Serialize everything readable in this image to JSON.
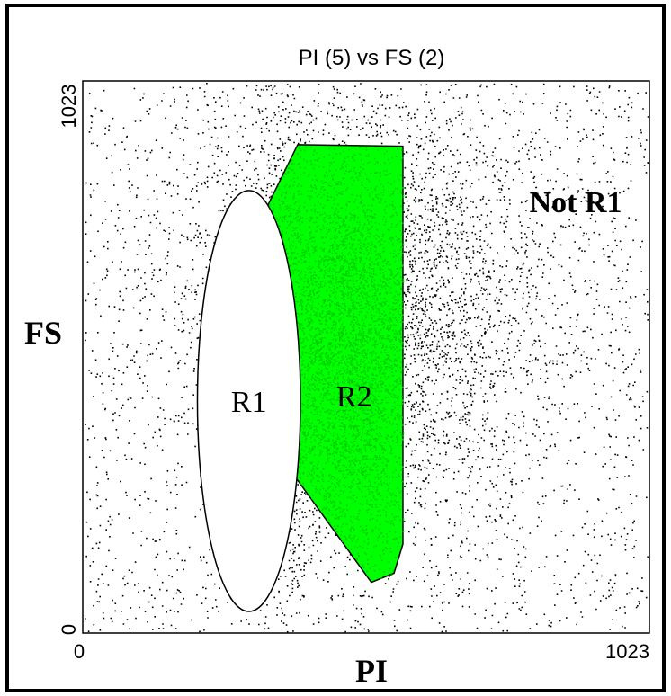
{
  "chart_data": {
    "type": "scatter",
    "title": "PI (5) vs FS (2)",
    "xlabel": "PI",
    "ylabel": "FS",
    "xlim": [
      0,
      1023
    ],
    "ylim": [
      0,
      1023
    ],
    "x_ticks": [
      "0",
      "1023"
    ],
    "y_ticks": [
      "0",
      "1023"
    ],
    "grid": false,
    "legend": "none",
    "colors": {
      "dots": "#000000",
      "r2_fill": "#00ff00",
      "r2_dots": "#00cc00",
      "background": "#ffffff"
    },
    "regions": [
      {
        "label": "R1",
        "shape": "ellipse",
        "center": [
          300,
          430
        ],
        "radii": [
          93,
          390
        ]
      },
      {
        "label": "R2",
        "shape": "polygon",
        "points": [
          [
            388,
            905
          ],
          [
            578,
            902
          ],
          [
            578,
            165
          ],
          [
            562,
            111
          ],
          [
            521,
            94
          ],
          [
            376,
            300
          ],
          [
            363,
            318
          ],
          [
            353,
            662
          ],
          [
            315,
            732
          ],
          [
            305,
            732
          ]
        ]
      },
      {
        "label": "Not R1",
        "shape": "text-only"
      }
    ]
  }
}
